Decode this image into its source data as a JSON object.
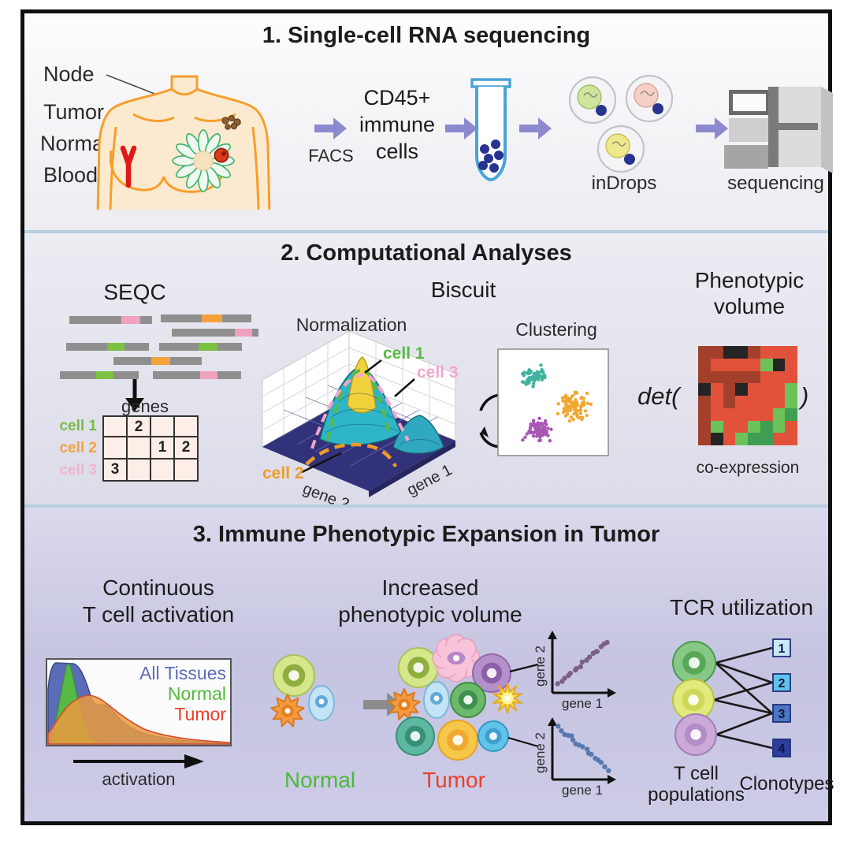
{
  "panel1": {
    "title": "1. Single-cell RNA sequencing",
    "labels": {
      "node": "Node",
      "tumor": "Tumor",
      "normal": "Normal",
      "blood": "Blood"
    },
    "facs": "FACS",
    "cd45": {
      "line1": "CD45+",
      "line2": "immune",
      "line3": "cells"
    },
    "indrops": "inDrops",
    "sequencing": "sequencing"
  },
  "panel2": {
    "title": "2. Computational Analyses",
    "seqc": {
      "heading": "SEQC",
      "genes": "genes",
      "rows": [
        {
          "label": "cell 1",
          "color": "#76bf43",
          "values": [
            "",
            "2",
            "",
            ""
          ]
        },
        {
          "label": "cell 2",
          "color": "#f6a13b",
          "values": [
            "",
            "",
            "1",
            "2"
          ]
        },
        {
          "label": "cell 3",
          "color": "#f3b3cb",
          "values": [
            "3",
            "",
            "",
            ""
          ]
        }
      ]
    },
    "biscuit": {
      "heading": "Biscuit",
      "normalization": "Normalization",
      "clustering": "Clustering",
      "cell1": "cell 1",
      "cell2": "cell 2",
      "cell3": "cell 3",
      "cell1_color": "#58b944",
      "cell2_color": "#f09a28",
      "cell3_color": "#f2a6cc",
      "gene1": "gene 1",
      "gene2": "gene 2"
    },
    "phenotypic": {
      "heading1": "Phenotypic",
      "heading2": "volume",
      "det": "det(",
      "paren": ")",
      "coexpression": "co-expression",
      "heatmap": {
        "palette": {
          "R": "#a2402c",
          "r": "#e2523a",
          "k": "#242424",
          "g": "#6cc258",
          "d": "#3f9e51"
        },
        "grid": [
          "RRkkRrrr",
          "Rrrrrgkr",
          "RRRRRrrr",
          "krRkrrrg",
          "RrRrrrrg",
          "Rrrrrrgd",
          "Rgrrgdgr",
          "Rkrgddrr"
        ]
      }
    }
  },
  "panel3": {
    "title": "3. Immune Phenotypic Expansion in Tumor",
    "activation": {
      "heading1": "Continuous",
      "heading2": "T cell activation",
      "legend": [
        {
          "label": "All Tissues",
          "color": "#5b6cb8"
        },
        {
          "label": "Normal",
          "color": "#53b83c"
        },
        {
          "label": "Tumor",
          "color": "#ea4029"
        }
      ],
      "axis": "activation"
    },
    "volume": {
      "heading1": "Increased",
      "heading2": "phenotypic volume",
      "normal": "Normal",
      "normal_color": "#4db73c",
      "tumor": "Tumor",
      "tumor_color": "#ea4029",
      "gene1": "gene 1",
      "gene2": "gene 2"
    },
    "tcr": {
      "heading": "TCR utilization",
      "pop1": "T cell",
      "pop2": "populations",
      "clonotypes_label": "Clonotypes",
      "clonotypes": [
        {
          "label": "1",
          "color": "#c7e9f7"
        },
        {
          "label": "2",
          "color": "#5fc3ea"
        },
        {
          "label": "3",
          "color": "#4a77c4"
        },
        {
          "label": "4",
          "color": "#2c3d9e"
        }
      ],
      "links": [
        [
          0,
          0
        ],
        [
          0,
          1
        ],
        [
          0,
          2
        ],
        [
          1,
          1
        ],
        [
          1,
          2
        ],
        [
          2,
          2
        ],
        [
          2,
          3
        ]
      ]
    }
  }
}
